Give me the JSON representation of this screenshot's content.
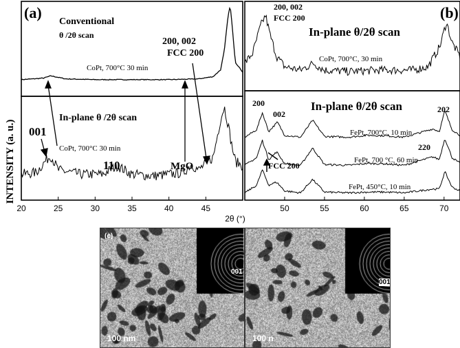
{
  "figure": {
    "y_axis_label": "INTENSITY (a. u.)",
    "x_axis_label": "2θ (°)",
    "panel_a": {
      "tag": "(a)",
      "top_title_line1": "Conventional",
      "top_title_line2": "θ /2θ scan",
      "top_sample": "CoPt, 700°C 30 min",
      "bottom_title": "In-plane  θ /2θ scan",
      "bottom_sample": "CoPt, 700°C 30 min",
      "peak_001": "001",
      "peak_110": "110",
      "peak_mgo": "MgO",
      "peak_200_line1": "200, 002",
      "peak_200_line2": "FCC 200"
    },
    "panel_b": {
      "tag": "(b)",
      "top_title": "In-plane θ/2θ scan",
      "top_peak_line1": "200, 002",
      "top_peak_line2": "FCC 200",
      "top_sample": "CoPt, 700°C, 30 min",
      "bottom_title": "In-plane θ/2θ scan",
      "peak_200": "200",
      "peak_002": "002",
      "peak_220": "220",
      "peak_202": "202",
      "fcc200": "FCC 200",
      "sample1": "FePt, 700°C, 10 min",
      "sample2": "FePt, 700 °C, 60 min",
      "sample3": "FePt, 450°C, 10 min"
    },
    "tem": {
      "left_scale": "100 nm",
      "right_scale": "100 n",
      "left_tag": "(c)",
      "left_ring": "001",
      "right_ring": "001"
    }
  },
  "chart_data": [
    {
      "type": "line",
      "title": "Conventional θ /2θ scan",
      "panel": "(a) top",
      "xlim": [
        20,
        50
      ],
      "series": [
        {
          "name": "CoPt, 700°C 30 min",
          "x": [
            20,
            23,
            24,
            26,
            30,
            35,
            40,
            44,
            46,
            47,
            47.5,
            48,
            48.3,
            48.6,
            49,
            50
          ],
          "y": [
            0.02,
            0.04,
            0.07,
            0.03,
            0.02,
            0.02,
            0.02,
            0.03,
            0.06,
            0.15,
            0.4,
            0.85,
            1.0,
            0.7,
            0.25,
            0.12
          ]
        }
      ]
    },
    {
      "type": "line",
      "title": "In-plane θ /2θ scan",
      "panel": "(a) bottom",
      "xlim": [
        20,
        50
      ],
      "series": [
        {
          "name": "CoPt, 700°C 30 min",
          "x": [
            20,
            22,
            23.5,
            24,
            25,
            28,
            31,
            33,
            35,
            38,
            42,
            43,
            44,
            46,
            47,
            47.5,
            48,
            48.5,
            49,
            50
          ],
          "y": [
            0.2,
            0.22,
            0.38,
            0.42,
            0.25,
            0.2,
            0.2,
            0.3,
            0.2,
            0.18,
            0.22,
            0.32,
            0.25,
            0.4,
            0.85,
            1.0,
            0.8,
            0.55,
            0.35,
            0.3
          ]
        }
      ]
    },
    {
      "type": "line",
      "title": "In-plane θ/2θ scan",
      "panel": "(b) top",
      "xlim": [
        45,
        72
      ],
      "series": [
        {
          "name": "CoPt, 700°C, 30 min",
          "x": [
            45,
            46,
            47,
            47.6,
            48.2,
            49,
            50,
            52,
            53.6,
            55,
            58,
            62,
            66,
            68,
            69.5,
            70.3,
            71,
            72
          ],
          "y": [
            0.3,
            0.45,
            0.85,
            1.0,
            0.7,
            0.4,
            0.25,
            0.2,
            0.3,
            0.2,
            0.18,
            0.2,
            0.2,
            0.25,
            0.55,
            0.9,
            0.6,
            0.4
          ]
        }
      ]
    },
    {
      "type": "line",
      "title": "In-plane θ/2θ scan",
      "panel": "(b) bottom",
      "xlim": [
        45,
        72
      ],
      "series": [
        {
          "name": "FePt, 700°C, 10 min",
          "x": [
            45,
            46.5,
            47.2,
            48,
            49.1,
            50,
            52,
            53.5,
            55,
            58,
            60.3,
            62.6,
            65,
            68.6,
            69.4,
            70.1,
            71,
            72
          ],
          "y": [
            0.1,
            0.3,
            0.75,
            0.25,
            0.5,
            0.15,
            0.1,
            0.55,
            0.12,
            0.1,
            0.15,
            0.14,
            0.1,
            0.32,
            0.25,
            0.8,
            0.3,
            0.15
          ]
        },
        {
          "name": "FePt, 700 °C, 60 min",
          "x": [
            45,
            46.5,
            47.2,
            48,
            49,
            50,
            52,
            53.5,
            55,
            58,
            60.3,
            62.6,
            65,
            68.6,
            69.4,
            70.1,
            71,
            72
          ],
          "y": [
            0.1,
            0.3,
            0.75,
            0.25,
            0.45,
            0.15,
            0.1,
            0.55,
            0.12,
            0.1,
            0.15,
            0.14,
            0.1,
            0.32,
            0.25,
            0.8,
            0.3,
            0.15
          ]
        },
        {
          "name": "FePt, 450°C, 10 min",
          "x": [
            45,
            46.5,
            47.2,
            48,
            49,
            50,
            52,
            53.5,
            55,
            58,
            60.3,
            62.6,
            65,
            68.6,
            69.4,
            70.1,
            71,
            72
          ],
          "y": [
            0.1,
            0.3,
            0.7,
            0.3,
            0.38,
            0.15,
            0.1,
            0.45,
            0.12,
            0.1,
            0.12,
            0.12,
            0.1,
            0.2,
            0.2,
            0.65,
            0.25,
            0.15
          ]
        }
      ]
    }
  ]
}
